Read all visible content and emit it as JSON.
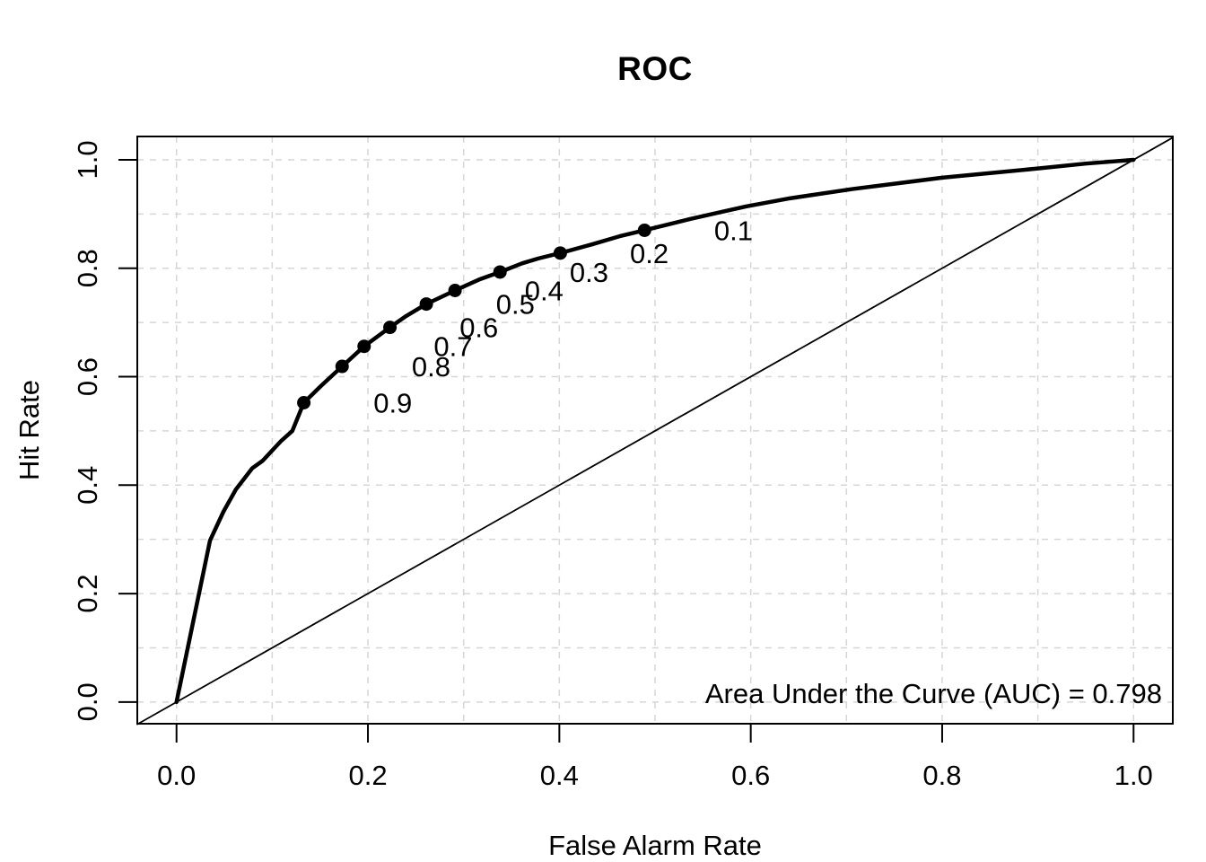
{
  "figure": {
    "title": "ROC",
    "x_axis_title": "False Alarm Rate",
    "y_axis_title": "Hit Rate",
    "annotation": "Area Under the Curve (AUC) = 0.798"
  },
  "chart_data": {
    "type": "line",
    "title": "ROC",
    "xlabel": "False Alarm Rate",
    "ylabel": "Hit Rate",
    "xlim": [
      -0.041,
      1.041
    ],
    "ylim": [
      -0.04,
      1.043
    ],
    "x_ticks": [
      {
        "value": 0.0,
        "label": "0.0"
      },
      {
        "value": 0.2,
        "label": "0.2"
      },
      {
        "value": 0.4,
        "label": "0.4"
      },
      {
        "value": 0.6,
        "label": "0.6"
      },
      {
        "value": 0.8,
        "label": "0.8"
      },
      {
        "value": 1.0,
        "label": "1.0"
      }
    ],
    "y_ticks": [
      {
        "value": 0.0,
        "label": "0.0"
      },
      {
        "value": 0.2,
        "label": "0.2"
      },
      {
        "value": 0.4,
        "label": "0.4"
      },
      {
        "value": 0.6,
        "label": "0.6"
      },
      {
        "value": 0.8,
        "label": "0.8"
      },
      {
        "value": 1.0,
        "label": "1.0"
      }
    ],
    "grid": {
      "visible": true,
      "step": 0.1,
      "min": 0.0,
      "max": 1.0,
      "style": "dashed",
      "color": "#d6d6d6"
    },
    "auc": 0.798,
    "series": [
      {
        "name": "roc-curve",
        "color": "#000000",
        "line_width": 4.5,
        "points": [
          [
            0.0,
            0.0
          ],
          [
            0.035,
            0.298
          ],
          [
            0.049,
            0.351
          ],
          [
            0.062,
            0.392
          ],
          [
            0.079,
            0.431
          ],
          [
            0.09,
            0.445
          ],
          [
            0.109,
            0.481
          ],
          [
            0.121,
            0.5
          ],
          [
            0.133,
            0.552
          ],
          [
            0.151,
            0.583
          ],
          [
            0.173,
            0.619
          ],
          [
            0.196,
            0.656
          ],
          [
            0.223,
            0.691
          ],
          [
            0.24,
            0.712
          ],
          [
            0.261,
            0.734
          ],
          [
            0.291,
            0.759
          ],
          [
            0.316,
            0.779
          ],
          [
            0.338,
            0.793
          ],
          [
            0.361,
            0.809
          ],
          [
            0.378,
            0.818
          ],
          [
            0.401,
            0.828
          ],
          [
            0.434,
            0.844
          ],
          [
            0.463,
            0.859
          ],
          [
            0.489,
            0.87
          ],
          [
            0.537,
            0.891
          ],
          [
            0.575,
            0.906
          ],
          [
            0.595,
            0.914
          ],
          [
            0.641,
            0.929
          ],
          [
            0.706,
            0.946
          ],
          [
            0.8,
            0.967
          ],
          [
            0.9,
            0.984
          ],
          [
            0.95,
            0.993
          ],
          [
            1.0,
            1.0
          ]
        ]
      },
      {
        "name": "chance-line",
        "color": "#000000",
        "line_width": 1.8,
        "points": [
          [
            -0.041,
            -0.041
          ],
          [
            1.041,
            1.041
          ]
        ]
      }
    ],
    "threshold_points": [
      {
        "label": "0.9",
        "x": 0.133,
        "y": 0.552
      },
      {
        "label": "0.8",
        "x": 0.173,
        "y": 0.619
      },
      {
        "label": "0.7",
        "x": 0.196,
        "y": 0.656
      },
      {
        "label": "0.6",
        "x": 0.223,
        "y": 0.691
      },
      {
        "label": "0.5",
        "x": 0.261,
        "y": 0.734
      },
      {
        "label": "0.4",
        "x": 0.291,
        "y": 0.759
      },
      {
        "label": "0.3",
        "x": 0.338,
        "y": 0.793
      },
      {
        "label": "0.2",
        "x": 0.401,
        "y": 0.828
      },
      {
        "label": "0.1",
        "x": 0.489,
        "y": 0.87
      }
    ],
    "threshold_label_offset_x": 0.093,
    "point_radius": 7.5,
    "legend": null
  },
  "colors": {
    "background": "#ffffff",
    "curve": "#000000",
    "grid": "#d6d6d6",
    "text": "#000000"
  }
}
